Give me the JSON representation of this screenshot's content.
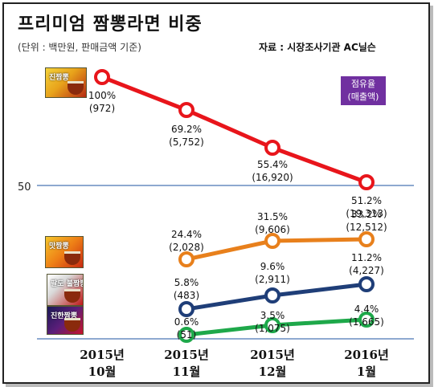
{
  "header": {
    "title": "프리미엄 짬뽕라면 비중",
    "unit_note": "(단위 :  백만원, 판매금액 기준)",
    "source": "자료 : 시장조사기관 AC닐슨"
  },
  "legend": {
    "line1": "점유율",
    "line2": "(매출액)",
    "color": "#7030a0"
  },
  "products": [
    {
      "label": "진짬뽕"
    },
    {
      "label": "맛짬뽕"
    },
    {
      "label": "팔도 불짬뽕"
    },
    {
      "label": "진한짬뽕"
    }
  ],
  "chart_data": {
    "type": "line",
    "categories": [
      {
        "year": "2015년",
        "month": "10월"
      },
      {
        "year": "2015년",
        "month": "11월"
      },
      {
        "year": "2015년",
        "month": "12월"
      },
      {
        "year": "2016년",
        "month": "1월"
      }
    ],
    "reference_line": {
      "value": 50,
      "label": "50"
    },
    "series": [
      {
        "color": "#e8151b",
        "points": [
          {
            "cat": 0,
            "share": 100,
            "pct": "100%",
            "sales": "(972)"
          },
          {
            "cat": 1,
            "share": 69.2,
            "pct": "69.2%",
            "sales": "(5,752)"
          },
          {
            "cat": 2,
            "share": 55.4,
            "pct": "55.4%",
            "sales": "(16,920)"
          },
          {
            "cat": 3,
            "share": 51.2,
            "pct": "51.2%",
            "sales": "(19,313)"
          }
        ]
      },
      {
        "color": "#e8801c",
        "points": [
          {
            "cat": 1,
            "share": 24.4,
            "pct": "24.4%",
            "sales": "(2,028)"
          },
          {
            "cat": 2,
            "share": 31.5,
            "pct": "31.5%",
            "sales": "(9,606)"
          },
          {
            "cat": 3,
            "share": 33.2,
            "pct": "33.2%",
            "sales": "(12,512)"
          }
        ]
      },
      {
        "color": "#1f3e78",
        "points": [
          {
            "cat": 1,
            "share": 5.8,
            "pct": "5.8%",
            "sales": "(483)"
          },
          {
            "cat": 2,
            "share": 9.6,
            "pct": "9.6%",
            "sales": "(2,911)"
          },
          {
            "cat": 3,
            "share": 11.2,
            "pct": "11.2%",
            "sales": "(4,227)"
          }
        ]
      },
      {
        "color": "#1ea84a",
        "points": [
          {
            "cat": 1,
            "share": 0.6,
            "pct": "0.6%",
            "sales": "(51)"
          },
          {
            "cat": 2,
            "share": 3.5,
            "pct": "3.5%",
            "sales": "(1,075)"
          },
          {
            "cat": 3,
            "share": 4.4,
            "pct": "4.4%",
            "sales": "(1,665)"
          }
        ]
      }
    ]
  }
}
